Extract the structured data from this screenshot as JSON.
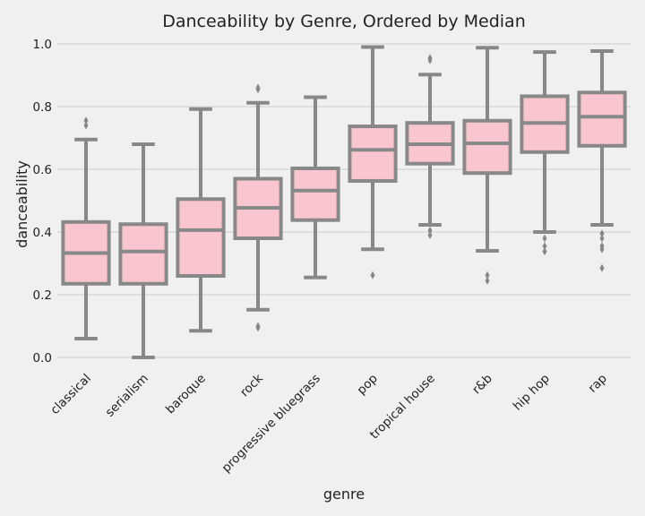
{
  "chart_data": {
    "type": "box",
    "title": "Danceability by Genre, Ordered by Median",
    "xlabel": "genre",
    "ylabel": "danceability",
    "ylim": [
      -0.05,
      1.02
    ],
    "yticks": [
      "0.0",
      "0.2",
      "0.4",
      "0.6",
      "0.8",
      "1.0"
    ],
    "grid": true,
    "colors": {
      "box_fill": "#f9c6d0",
      "box_stroke": "#888888",
      "grid": "#cbcbcb",
      "background": "#f0f0f0"
    },
    "categories": [
      "classical",
      "serialism",
      "baroque",
      "rock",
      "progressive bluegrass",
      "pop",
      "tropical house",
      "r&b",
      "hip hop",
      "rap"
    ],
    "boxes": [
      {
        "genre": "classical",
        "whisker_low": 0.06,
        "q1": 0.235,
        "median": 0.333,
        "q3": 0.432,
        "whisker_high": 0.695,
        "outliers": [
          0.74,
          0.755
        ]
      },
      {
        "genre": "serialism",
        "whisker_low": 0.0,
        "q1": 0.235,
        "median": 0.338,
        "q3": 0.425,
        "whisker_high": 0.68,
        "outliers": []
      },
      {
        "genre": "baroque",
        "whisker_low": 0.085,
        "q1": 0.26,
        "median": 0.406,
        "q3": 0.505,
        "whisker_high": 0.792,
        "outliers": []
      },
      {
        "genre": "rock",
        "whisker_low": 0.152,
        "q1": 0.38,
        "median": 0.477,
        "q3": 0.57,
        "whisker_high": 0.812,
        "outliers": [
          0.095,
          0.1,
          0.855,
          0.86
        ]
      },
      {
        "genre": "progressive bluegrass",
        "whisker_low": 0.255,
        "q1": 0.438,
        "median": 0.532,
        "q3": 0.603,
        "whisker_high": 0.83,
        "outliers": []
      },
      {
        "genre": "pop",
        "whisker_low": 0.345,
        "q1": 0.563,
        "median": 0.662,
        "q3": 0.737,
        "whisker_high": 0.99,
        "outliers": [
          0.262
        ]
      },
      {
        "genre": "tropical house",
        "whisker_low": 0.423,
        "q1": 0.618,
        "median": 0.68,
        "q3": 0.748,
        "whisker_high": 0.902,
        "outliers": [
          0.39,
          0.405,
          0.948,
          0.955
        ]
      },
      {
        "genre": "r&b",
        "whisker_low": 0.34,
        "q1": 0.588,
        "median": 0.683,
        "q3": 0.755,
        "whisker_high": 0.988,
        "outliers": [
          0.245,
          0.262
        ]
      },
      {
        "genre": "hip hop",
        "whisker_low": 0.4,
        "q1": 0.655,
        "median": 0.748,
        "q3": 0.833,
        "whisker_high": 0.974,
        "outliers": [
          0.338,
          0.355,
          0.38
        ]
      },
      {
        "genre": "rap",
        "whisker_low": 0.423,
        "q1": 0.675,
        "median": 0.768,
        "q3": 0.845,
        "whisker_high": 0.977,
        "outliers": [
          0.285,
          0.345,
          0.355,
          0.38,
          0.395
        ]
      }
    ]
  }
}
